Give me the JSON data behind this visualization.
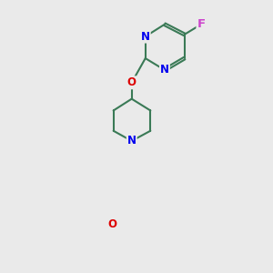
{
  "background_color": "#eaeaea",
  "bond_color": "#3a7a56",
  "bond_width": 1.5,
  "atom_colors": {
    "N": "#0000ee",
    "O": "#dd0000",
    "F": "#cc44cc",
    "C": "#000000"
  },
  "font_size_atoms": 8.5,
  "figsize": [
    3.0,
    3.0
  ],
  "dpi": 100
}
